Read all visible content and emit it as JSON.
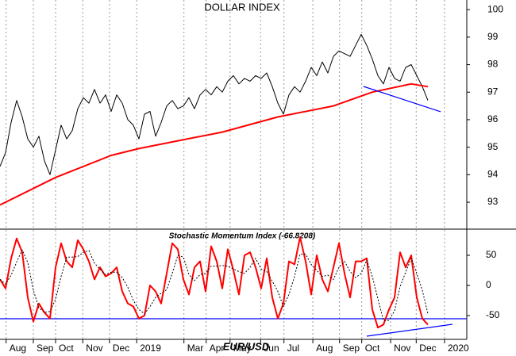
{
  "chart_data": [
    {
      "type": "line",
      "title": "DOLLAR INDEX",
      "xlim": [
        0,
        84
      ],
      "ylim": [
        92.05,
        100.35
      ],
      "yticks": [
        93,
        94,
        95,
        96,
        97,
        98,
        99,
        100
      ],
      "grid": true,
      "series": [
        {
          "color": "#000000",
          "width": 1,
          "x": [
            0,
            1,
            2,
            3,
            4,
            5,
            6,
            7,
            8,
            9,
            10,
            11,
            12,
            13,
            14,
            15,
            16,
            17,
            18,
            19,
            20,
            21,
            22,
            23,
            24,
            25,
            26,
            27,
            28,
            29,
            30,
            31,
            32,
            33,
            34,
            35,
            36,
            37,
            38,
            39,
            40,
            41,
            42,
            43,
            44,
            45,
            46,
            47,
            48,
            49,
            50,
            51,
            52,
            53,
            54,
            55,
            56,
            57,
            58,
            59,
            60,
            61,
            62,
            63,
            64,
            65,
            66,
            67,
            68,
            69,
            70,
            71,
            72,
            73,
            74,
            75,
            76,
            77
          ],
          "values": [
            94.3,
            94.8,
            95.9,
            96.7,
            96.1,
            95.3,
            95,
            95.4,
            94.5,
            94,
            94.9,
            95.8,
            95.3,
            95.6,
            96.4,
            96.8,
            96.6,
            97.1,
            96.6,
            96.9,
            96.3,
            96.9,
            96.6,
            96,
            95.8,
            95.3,
            96.2,
            96.3,
            95.4,
            95.9,
            96.5,
            96.7,
            96.4,
            96.5,
            96.8,
            96.4,
            96.9,
            97.1,
            96.9,
            97.2,
            97,
            97.4,
            97.6,
            97.3,
            97.5,
            97.4,
            97.6,
            97.5,
            97.7,
            97.2,
            96.6,
            96.2,
            96.9,
            97.2,
            97,
            97.4,
            97.9,
            97.6,
            98.1,
            97.7,
            98.3,
            98.5,
            98.4,
            98.3,
            98.7,
            99.1,
            98.7,
            98.2,
            97.6,
            97.3,
            97.9,
            97.5,
            97.4,
            97.9,
            98,
            97.6,
            97.2,
            96.7
          ]
        },
        {
          "color": "#ff0000",
          "width": 2,
          "x": [
            0,
            10,
            20,
            25,
            30,
            40,
            50,
            60,
            67,
            74,
            77
          ],
          "values": [
            92.9,
            93.9,
            94.7,
            94.95,
            95.15,
            95.55,
            96.1,
            96.5,
            97.0,
            97.3,
            97.2
          ]
        },
        {
          "color": "#0000ff",
          "width": 1.2,
          "x": [
            65.4,
            79.3
          ],
          "values": [
            97.21,
            96.29
          ]
        }
      ]
    },
    {
      "type": "line",
      "title": "Stochastic Momentum Index (-66.8208)",
      "annotation": "EUR/USD",
      "xlim": [
        0,
        84
      ],
      "ylim": [
        -89.5,
        92.1
      ],
      "yticks": [
        50,
        0,
        -50
      ],
      "grid": true,
      "xticks": [
        {
          "value": 1.1,
          "label": "Aug"
        },
        {
          "value": 6,
          "label": "Sep"
        },
        {
          "value": 10,
          "label": "Oct"
        },
        {
          "value": 14.9,
          "label": "Nov"
        },
        {
          "value": 19.7,
          "label": "Dec"
        },
        {
          "value": 24.6,
          "label": "2019"
        },
        {
          "value": 33.1,
          "label": "Mar"
        },
        {
          "value": 37.1,
          "label": "Apr"
        },
        {
          "value": 41.4,
          "label": "May"
        },
        {
          "value": 46.9,
          "label": "Jun"
        },
        {
          "value": 51.1,
          "label": "Jul"
        },
        {
          "value": 56.3,
          "label": "Aug"
        },
        {
          "value": 61.1,
          "label": "Sep"
        },
        {
          "value": 65.1,
          "label": "Oct"
        },
        {
          "value": 70.3,
          "label": "Nov"
        },
        {
          "value": 74.9,
          "label": "Dec"
        },
        {
          "value": 80,
          "label": "2020"
        }
      ],
      "hlines": [
        {
          "value": -55.3,
          "color": "#0000ff"
        }
      ],
      "series": [
        {
          "color": "#ff0000",
          "width": 2,
          "x": [
            0,
            1,
            2,
            3,
            4,
            5,
            6,
            7,
            8,
            9,
            10,
            11,
            12,
            13,
            14,
            15,
            16,
            17,
            18,
            19,
            20,
            21,
            22,
            23,
            24,
            25,
            26,
            27,
            28,
            29,
            30,
            31,
            32,
            33,
            34,
            35,
            36,
            37,
            38,
            39,
            40,
            41,
            42,
            43,
            44,
            45,
            46,
            47,
            48,
            49,
            50,
            51,
            52,
            53,
            54,
            55,
            56,
            57,
            58,
            59,
            60,
            61,
            62,
            63,
            64,
            65,
            66,
            67,
            68,
            69,
            70,
            71,
            72,
            73,
            74,
            75,
            76,
            77
          ],
          "values": [
            10,
            -5,
            45,
            78,
            55,
            -20,
            -60,
            -30,
            -45,
            -55,
            30,
            70,
            40,
            30,
            75,
            60,
            40,
            10,
            30,
            15,
            20,
            30,
            -10,
            -30,
            -35,
            -55,
            -50,
            0,
            -10,
            -30,
            20,
            70,
            60,
            10,
            -15,
            30,
            40,
            -10,
            65,
            40,
            -5,
            60,
            25,
            -15,
            50,
            55,
            30,
            -5,
            45,
            -20,
            -55,
            -30,
            40,
            35,
            80,
            40,
            -15,
            50,
            10,
            -10,
            30,
            70,
            20,
            -20,
            40,
            40,
            45,
            -40,
            -70,
            -65,
            -40,
            -20,
            55,
            30,
            50,
            -20,
            -55,
            -65
          ]
        },
        {
          "color": "#000000",
          "width": 1,
          "dash": true,
          "x": [
            0,
            1,
            2,
            3,
            4,
            5,
            6,
            7,
            8,
            9,
            10,
            11,
            12,
            13,
            14,
            15,
            16,
            17,
            18,
            19,
            20,
            21,
            22,
            23,
            24,
            25,
            26,
            27,
            28,
            29,
            30,
            31,
            32,
            33,
            34,
            35,
            36,
            37,
            38,
            39,
            40,
            41,
            42,
            43,
            44,
            45,
            46,
            47,
            48,
            49,
            50,
            51,
            52,
            53,
            54,
            55,
            56,
            57,
            58,
            59,
            60,
            61,
            62,
            63,
            64,
            65,
            66,
            67,
            68,
            69,
            70,
            71,
            72,
            73,
            74,
            75,
            76,
            77
          ],
          "values": [
            10,
            2,
            17,
            39,
            59,
            38,
            -8,
            -37,
            -45,
            -43,
            -23,
            15,
            47,
            47,
            48,
            55,
            58,
            37,
            27,
            18,
            22,
            22,
            13,
            -3,
            -25,
            -40,
            -47,
            -35,
            -20,
            -13,
            -7,
            20,
            50,
            47,
            18,
            8,
            18,
            20,
            32,
            32,
            33,
            32,
            27,
            23,
            20,
            30,
            45,
            27,
            23,
            7,
            -10,
            -35,
            -15,
            15,
            52,
            52,
            35,
            25,
            15,
            17,
            10,
            30,
            40,
            23,
            13,
            20,
            42,
            15,
            -22,
            -58,
            -58,
            -42,
            -2,
            22,
            45,
            20,
            -8,
            -47
          ]
        },
        {
          "color": "#0000ff",
          "width": 1.2,
          "x": [
            66,
            81.4
          ],
          "values": [
            -84.2,
            -64.5
          ]
        }
      ]
    }
  ]
}
